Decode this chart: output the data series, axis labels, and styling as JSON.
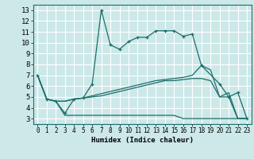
{
  "xlabel": "Humidex (Indice chaleur)",
  "bg_color": "#cce8e8",
  "grid_color": "#ffffff",
  "line_color": "#1a6e6a",
  "xlim": [
    -0.5,
    23.5
  ],
  "ylim": [
    2.5,
    13.5
  ],
  "xticks": [
    0,
    1,
    2,
    3,
    4,
    5,
    6,
    7,
    8,
    9,
    10,
    11,
    12,
    13,
    14,
    15,
    16,
    17,
    18,
    19,
    20,
    21,
    22,
    23
  ],
  "yticks": [
    3,
    4,
    5,
    6,
    7,
    8,
    9,
    10,
    11,
    12,
    13
  ],
  "line1_x": [
    0,
    1,
    2,
    3,
    4,
    5,
    6,
    7,
    8,
    9,
    10,
    11,
    12,
    13,
    14,
    15,
    16,
    17,
    18,
    20,
    21,
    22,
    23
  ],
  "line1_y": [
    7.0,
    4.8,
    4.6,
    3.5,
    4.8,
    4.9,
    6.2,
    13.0,
    9.8,
    9.4,
    10.1,
    10.5,
    10.5,
    11.1,
    11.1,
    11.1,
    10.6,
    10.8,
    7.9,
    6.2,
    5.0,
    5.4,
    3.0
  ],
  "line2_x": [
    0,
    1,
    2,
    3,
    4,
    5,
    6,
    7,
    8,
    9,
    10,
    11,
    12,
    13,
    14,
    15,
    16,
    17,
    18,
    19,
    20,
    21,
    22,
    23
  ],
  "line2_y": [
    7.0,
    4.8,
    4.6,
    3.3,
    3.3,
    3.3,
    3.3,
    3.3,
    3.3,
    3.3,
    3.3,
    3.3,
    3.3,
    3.3,
    3.3,
    3.3,
    3.0,
    3.0,
    3.0,
    3.0,
    3.0,
    3.0,
    3.0,
    3.0
  ],
  "line3_x": [
    0,
    1,
    2,
    3,
    4,
    5,
    6,
    7,
    8,
    9,
    10,
    11,
    12,
    13,
    14,
    15,
    16,
    17,
    18,
    19,
    20,
    21,
    22,
    23
  ],
  "line3_y": [
    7.0,
    4.8,
    4.6,
    4.6,
    4.8,
    4.9,
    5.1,
    5.3,
    5.5,
    5.7,
    5.9,
    6.1,
    6.3,
    6.5,
    6.6,
    6.7,
    6.8,
    7.0,
    7.9,
    7.5,
    5.0,
    5.4,
    3.0,
    3.0
  ],
  "line4_x": [
    0,
    1,
    2,
    3,
    4,
    5,
    6,
    7,
    8,
    9,
    10,
    11,
    12,
    13,
    14,
    15,
    16,
    17,
    18,
    19,
    20,
    21,
    22,
    23
  ],
  "line4_y": [
    7.0,
    4.8,
    4.6,
    4.6,
    4.8,
    4.9,
    5.0,
    5.1,
    5.3,
    5.5,
    5.7,
    5.9,
    6.1,
    6.3,
    6.5,
    6.5,
    6.6,
    6.7,
    6.7,
    6.5,
    5.0,
    5.0,
    3.0,
    3.0
  ]
}
